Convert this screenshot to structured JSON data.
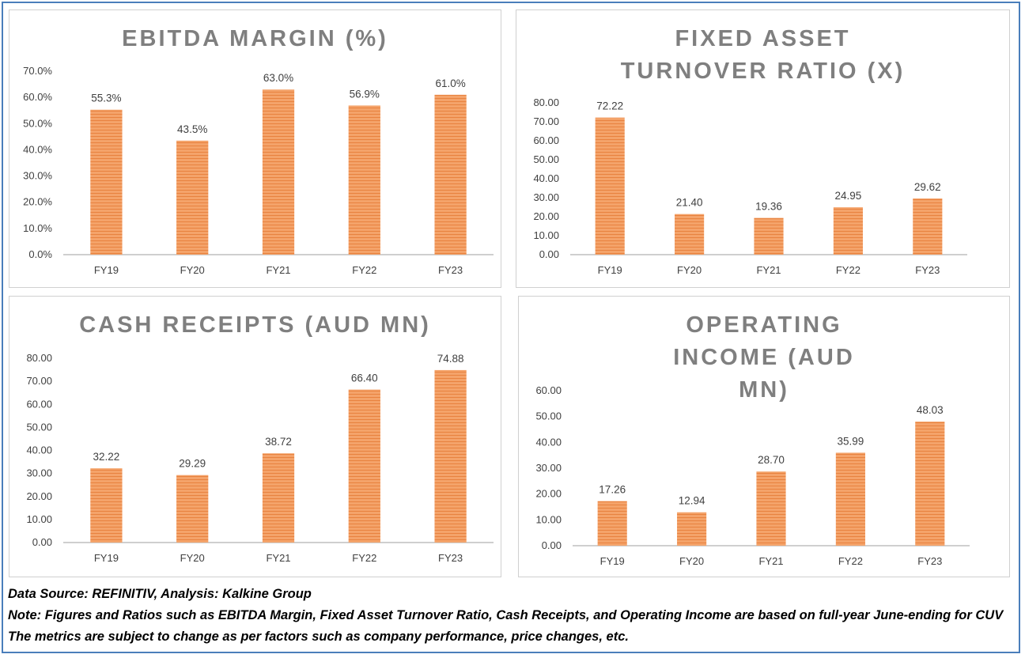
{
  "charts": [
    {
      "title": "EBITDA MARGIN (%)"
    },
    {
      "title": "FIXED ASSET TURNOVER RATIO (X)"
    },
    {
      "title": "CASH RECEIPTS (AUD MN)"
    },
    {
      "title": "OPERATING INCOME (AUD MN)"
    }
  ],
  "chart_data": [
    {
      "type": "bar",
      "title": "EBITDA MARGIN (%)",
      "categories": [
        "FY19",
        "FY20",
        "FY21",
        "FY22",
        "FY23"
      ],
      "values": [
        55.3,
        43.5,
        63.0,
        56.9,
        61.0
      ],
      "value_labels": [
        "55.3%",
        "43.5%",
        "63.0%",
        "56.9%",
        "61.0%"
      ],
      "yticks": [
        "0.0%",
        "10.0%",
        "20.0%",
        "30.0%",
        "40.0%",
        "50.0%",
        "60.0%",
        "70.0%"
      ],
      "ylim": [
        0,
        70
      ],
      "legend": "none",
      "grid": false
    },
    {
      "type": "bar",
      "title": "FIXED ASSET TURNOVER RATIO (X)",
      "categories": [
        "FY19",
        "FY20",
        "FY21",
        "FY22",
        "FY23"
      ],
      "values": [
        72.22,
        21.4,
        19.36,
        24.95,
        29.62
      ],
      "value_labels": [
        "72.22",
        "21.40",
        "19.36",
        "24.95",
        "29.62"
      ],
      "yticks": [
        "0.00",
        "10.00",
        "20.00",
        "30.00",
        "40.00",
        "50.00",
        "60.00",
        "70.00",
        "80.00"
      ],
      "ylim": [
        0,
        80
      ],
      "legend": "none",
      "grid": false
    },
    {
      "type": "bar",
      "title": "CASH RECEIPTS (AUD MN)",
      "categories": [
        "FY19",
        "FY20",
        "FY21",
        "FY22",
        "FY23"
      ],
      "values": [
        32.22,
        29.29,
        38.72,
        66.4,
        74.88
      ],
      "value_labels": [
        "32.22",
        "29.29",
        "38.72",
        "66.40",
        "74.88"
      ],
      "yticks": [
        "0.00",
        "10.00",
        "20.00",
        "30.00",
        "40.00",
        "50.00",
        "60.00",
        "70.00",
        "80.00"
      ],
      "ylim": [
        0,
        80
      ],
      "legend": "none",
      "grid": false
    },
    {
      "type": "bar",
      "title": "OPERATING INCOME (AUD MN)",
      "categories": [
        "FY19",
        "FY20",
        "FY21",
        "FY22",
        "FY23"
      ],
      "values": [
        17.26,
        12.94,
        28.7,
        35.99,
        48.03
      ],
      "value_labels": [
        "17.26",
        "12.94",
        "28.70",
        "35.99",
        "48.03"
      ],
      "yticks": [
        "0.00",
        "10.00",
        "20.00",
        "30.00",
        "40.00",
        "50.00",
        "60.00"
      ],
      "ylim": [
        0,
        60
      ],
      "legend": "none",
      "grid": false
    }
  ],
  "colors": {
    "bar": "#f4a36a",
    "bar_stripe": "#e8823f",
    "axis": "#bfbfbf",
    "title": "#7f7f7f",
    "frame": "#4a7ebb"
  },
  "footer": {
    "source": "Data Source: REFINITIV, Analysis: Kalkine Group",
    "note": "Note: Figures and Ratios such as EBITDA Margin, Fixed Asset Turnover Ratio, Cash Receipts, and Operating Income are based on full-year June-ending for CUV",
    "disclaimer": "The metrics are subject to change as per factors such as company performance, price changes, etc."
  }
}
